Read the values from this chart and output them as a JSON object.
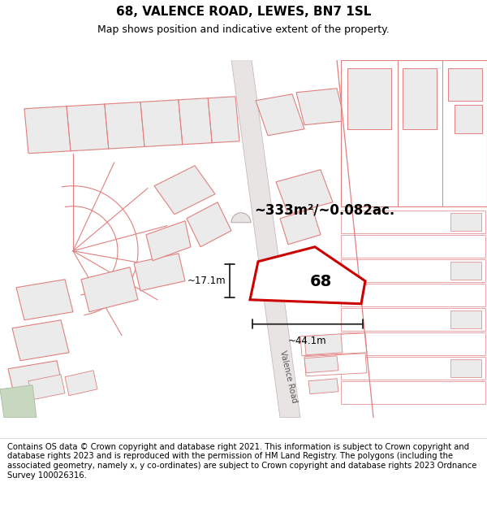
{
  "title_line1": "68, VALENCE ROAD, LEWES, BN7 1SL",
  "title_line2": "Map shows position and indicative extent of the property.",
  "footer_text": "Contains OS data © Crown copyright and database right 2021. This information is subject to Crown copyright and database rights 2023 and is reproduced with the permission of HM Land Registry. The polygons (including the associated geometry, namely x, y co-ordinates) are subject to Crown copyright and database rights 2023 Ordnance Survey 100026316.",
  "bg_color": "#f7f4f4",
  "area_label": "~333m²/~0.082ac.",
  "plot_number": "68",
  "dim_width": "~44.1m",
  "dim_height": "~17.1m",
  "road_label": "Valence Road",
  "highlight_color": "#cc0000",
  "title_fontsize": 11,
  "subtitle_fontsize": 9,
  "footer_fontsize": 7.2,
  "building_fc": "#ebebeb",
  "building_ec": "#e08080",
  "road_fc": "#f0eeee",
  "road_ec": "#ccaaaa"
}
